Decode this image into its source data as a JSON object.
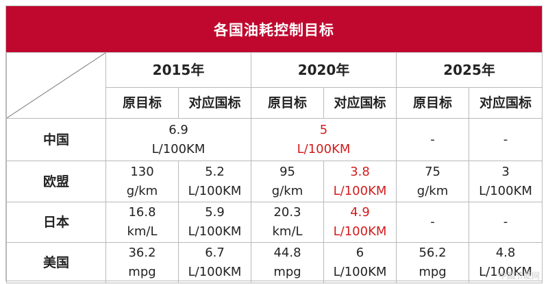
{
  "title": "各国油耗控制目标",
  "years": [
    "2015年",
    "2020年",
    "2025年"
  ],
  "sub_headers": {
    "original": "原目标",
    "corresponding": "对应国标"
  },
  "rows": [
    {
      "country": "中国",
      "y2015_merged": [
        "6.9",
        "L/100KM"
      ],
      "y2020_merged": [
        "5",
        "L/100KM"
      ],
      "y2025_orig": "-",
      "y2025_corr": "-"
    },
    {
      "country": "欧盟",
      "y2015_orig": [
        "130",
        "g/km"
      ],
      "y2015_corr": [
        "5.2",
        "L/100KM"
      ],
      "y2020_orig": [
        "95",
        "g/km"
      ],
      "y2020_corr": [
        "3.8",
        "L/100KM"
      ],
      "y2025_orig": [
        "75",
        "g/km"
      ],
      "y2025_corr": [
        "3",
        "L/100KM"
      ]
    },
    {
      "country": "日本",
      "y2015_orig": [
        "16.8",
        "km/L"
      ],
      "y2015_corr": [
        "5.9",
        "L/100KM"
      ],
      "y2020_orig": [
        "20.3",
        "km/L"
      ],
      "y2020_corr": [
        "4.9",
        "L/100KM"
      ],
      "y2025_orig": "-",
      "y2025_corr": "-"
    },
    {
      "country": "美国",
      "y2015_orig": [
        "36.2",
        "mpg"
      ],
      "y2015_corr": [
        "6.7",
        "L/100KM"
      ],
      "y2020_orig": [
        "44.8",
        "mpg"
      ],
      "y2020_corr": [
        "6",
        "L/100KM"
      ],
      "y2025_orig": [
        "56.2",
        "mpg"
      ],
      "y2025_corr": [
        "4.8",
        "L/100KM"
      ]
    }
  ],
  "watermark": "中国节能网",
  "colors": {
    "title_bg": "#c0082e",
    "highlight": "#d21b1b",
    "border": "#b9b9b9"
  }
}
